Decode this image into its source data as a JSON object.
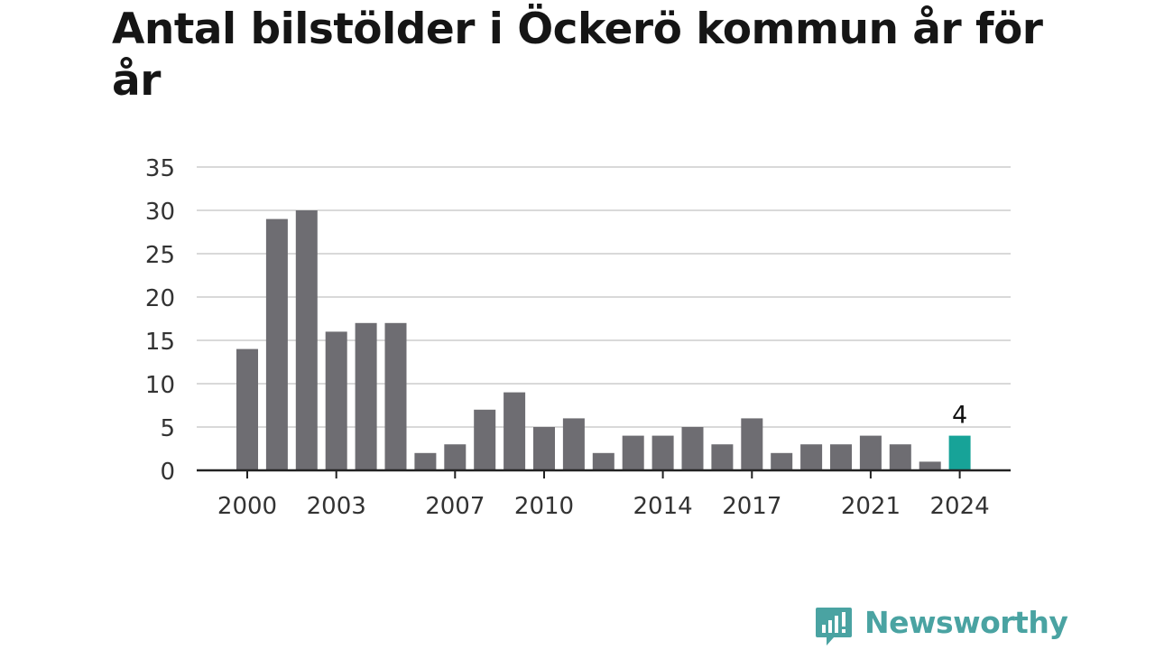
{
  "title": "Antal bilstölder i Öckerö kommun år för år",
  "brand": {
    "name": "Newsworthy",
    "color": "#4aa3a2"
  },
  "colors": {
    "bar": "#6e6d72",
    "highlight": "#17a398",
    "grid": "#d9d9d9",
    "axis": "#222222",
    "text": "#333333"
  },
  "chart_data": {
    "type": "bar",
    "categories": [
      "2000",
      "2001",
      "2002",
      "2003",
      "2004",
      "2005",
      "2006",
      "2007",
      "2008",
      "2009",
      "2010",
      "2011",
      "2012",
      "2013",
      "2014",
      "2015",
      "2016",
      "2017",
      "2018",
      "2019",
      "2020",
      "2021",
      "2022",
      "2023",
      "2024"
    ],
    "values": [
      14,
      29,
      30,
      16,
      17,
      17,
      2,
      3,
      7,
      9,
      5,
      6,
      2,
      4,
      4,
      5,
      3,
      6,
      2,
      3,
      3,
      4,
      3,
      1,
      4
    ],
    "xticks": [
      "2000",
      "2003",
      "2007",
      "2010",
      "2014",
      "2017",
      "2021",
      "2024"
    ],
    "yticks": [
      0,
      5,
      10,
      15,
      20,
      25,
      30,
      35
    ],
    "ylim": [
      0,
      35
    ],
    "highlight": {
      "category": "2024",
      "label": "4"
    },
    "grid": true,
    "xlabel": "",
    "ylabel": ""
  }
}
